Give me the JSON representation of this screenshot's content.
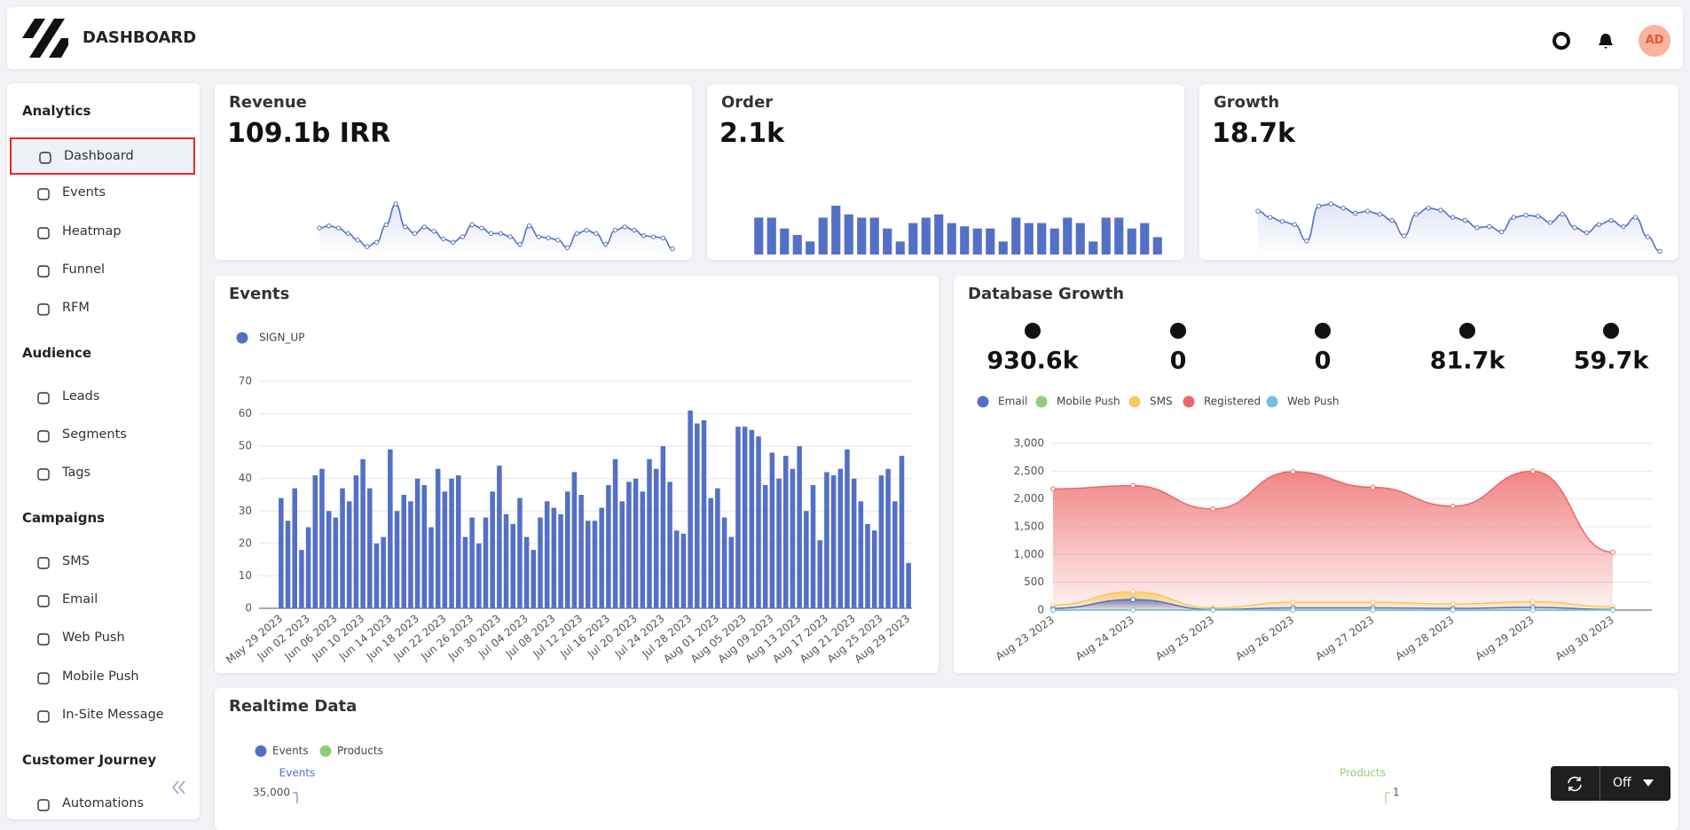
{
  "header": {
    "title": "DASHBOARD",
    "avatar": "AD"
  },
  "sidebar": {
    "sections": [
      {
        "title": "Analytics",
        "items": [
          "Dashboard",
          "Events",
          "Heatmap",
          "Funnel",
          "RFM"
        ]
      },
      {
        "title": "Audience",
        "items": [
          "Leads",
          "Segments",
          "Tags"
        ]
      },
      {
        "title": "Campaigns",
        "items": [
          "SMS",
          "Email",
          "Web Push",
          "Mobile Push",
          "In-Site Message"
        ]
      },
      {
        "title": "Customer Journey",
        "items": [
          "Automations"
        ]
      }
    ]
  },
  "cards": [
    {
      "title": "Revenue",
      "value": "109.1b IRR",
      "chart": {
        "type": "line",
        "color": "#5470c6",
        "values": [
          25,
          27,
          25,
          20,
          14,
          8,
          12,
          28,
          47,
          26,
          20,
          26,
          22,
          15,
          12,
          17,
          28,
          25,
          20,
          20,
          17,
          10,
          27,
          17,
          16,
          14,
          7,
          20,
          23,
          20,
          10,
          23,
          26,
          23,
          18,
          17,
          16,
          6
        ]
      }
    },
    {
      "title": "Order",
      "value": "2.1k",
      "chart": {
        "type": "bar",
        "color": "#5470c6",
        "values": [
          34,
          34,
          24,
          18,
          12,
          34,
          45,
          37,
          34,
          34,
          24,
          12,
          29,
          34,
          37,
          29,
          26,
          24,
          24,
          12,
          34,
          29,
          29,
          24,
          34,
          29,
          12,
          34,
          34,
          24,
          29,
          16
        ]
      }
    },
    {
      "title": "Growth",
      "value": "18.7k",
      "chart": {
        "type": "line",
        "color": "#5470c6",
        "values": [
          43,
          37,
          33,
          30,
          14,
          48,
          50,
          46,
          41,
          43,
          40,
          34,
          19,
          40,
          46,
          44,
          37,
          34,
          27,
          28,
          23,
          37,
          39,
          38,
          32,
          40,
          27,
          22,
          30,
          34,
          28,
          37,
          18,
          4
        ]
      }
    }
  ],
  "events_chart": {
    "title": "Events",
    "type": "bar",
    "categories": [
      "May 29 2023",
      null,
      null,
      null,
      "Jun 02 2023",
      null,
      null,
      null,
      "Jun 06 2023",
      null,
      null,
      null,
      "Jun 10 2023",
      null,
      null,
      null,
      "Jun 14 2023",
      null,
      null,
      null,
      "Jun 18 2023",
      null,
      null,
      null,
      "Jun 22 2023",
      null,
      null,
      null,
      "Jun 26 2023",
      null,
      null,
      null,
      "Jun 30 2023",
      null,
      null,
      null,
      "Jul 04 2023",
      null,
      null,
      null,
      "Jul 08 2023",
      null,
      null,
      null,
      "Jul 12 2023",
      null,
      null,
      null,
      "Jul 16 2023",
      null,
      null,
      null,
      "Jul 20 2023",
      null,
      null,
      null,
      "Jul 24 2023",
      null,
      null,
      null,
      "Jul 28 2023",
      null,
      null,
      null,
      "Aug 01 2023",
      null,
      null,
      null,
      "Aug 05 2023",
      null,
      null,
      null,
      "Aug 09 2023",
      null,
      null,
      null,
      "Aug 13 2023",
      null,
      null,
      null,
      "Aug 17 2023",
      null,
      null,
      null,
      "Aug 21 2023",
      null,
      null,
      null,
      "Aug 25 2023",
      null,
      null,
      null,
      "Aug 29 2023"
    ],
    "series": [
      {
        "name": "SIGN_UP",
        "color": "#5470c6",
        "values": [
          34,
          27,
          37,
          18,
          25,
          41,
          43,
          30,
          28,
          37,
          33,
          41,
          46,
          37,
          20,
          22,
          49,
          30,
          35,
          33,
          40,
          38,
          25,
          43,
          36,
          40,
          41,
          22,
          28,
          20,
          28,
          36,
          44,
          29,
          26,
          34,
          22,
          18,
          28,
          33,
          31,
          29,
          36,
          42,
          35,
          27,
          27,
          31,
          38,
          46,
          33,
          39,
          40,
          36,
          46,
          43,
          50,
          39,
          24,
          23,
          61,
          57,
          58,
          34,
          37,
          28,
          22,
          56,
          56,
          55,
          53,
          38,
          48,
          40,
          47,
          43,
          50,
          30,
          38,
          21,
          42,
          41,
          43,
          49,
          40,
          33,
          26,
          24,
          41,
          43,
          33,
          47,
          14
        ]
      }
    ],
    "ylim": [
      0,
      70
    ],
    "yticks": [
      0,
      10,
      20,
      30,
      40,
      50,
      60,
      70
    ],
    "grid": true
  },
  "database_growth": {
    "title": "Database Growth",
    "stats": [
      "930.6k",
      "0",
      "0",
      "81.7k",
      "59.7k"
    ],
    "chart": {
      "type": "area",
      "x": [
        "Aug 23 2023",
        "Aug 24 2023",
        "Aug 25 2023",
        "Aug 26 2023",
        "Aug 27 2023",
        "Aug 28 2023",
        "Aug 29 2023",
        "Aug 30 2023"
      ],
      "series": [
        {
          "name": "Email",
          "color": "#5470c6",
          "values": [
            30,
            190,
            10,
            40,
            40,
            30,
            50,
            10
          ]
        },
        {
          "name": "Mobile Push",
          "color": "#91cc75",
          "values": [
            0,
            0,
            0,
            0,
            0,
            0,
            0,
            0
          ]
        },
        {
          "name": "SMS",
          "color": "#fac858",
          "values": [
            90,
            330,
            40,
            140,
            140,
            110,
            150,
            60
          ]
        },
        {
          "name": "Registered",
          "color": "#ee6666",
          "values": [
            2180,
            2240,
            1820,
            2490,
            2210,
            1870,
            2500,
            1040
          ]
        },
        {
          "name": "Web Push",
          "color": "#73c0de",
          "values": [
            0,
            0,
            0,
            0,
            0,
            0,
            0,
            0
          ]
        }
      ],
      "ylim": [
        0,
        3000
      ],
      "yticks": [
        0,
        500,
        {
          "value": 1000,
          "label": "1,000"
        },
        {
          "value": 1500,
          "label": "1,500"
        },
        {
          "value": 2000,
          "label": "2,000"
        },
        {
          "value": 2500,
          "label": "2,500"
        },
        {
          "value": 3000,
          "label": "3,000"
        }
      ],
      "grid": true
    }
  },
  "realtime": {
    "title": "Realtime Data",
    "chart": {
      "type": "bar",
      "series": [
        {
          "name": "Events",
          "color": "#5470c6"
        },
        {
          "name": "Products",
          "color": "#91cc75",
          "axis": "y2"
        }
      ],
      "y_label": "Events",
      "y2_label": "Products",
      "ylim": [
        0,
        35000
      ],
      "yticks": [
        {
          "value": 35000,
          "label": "35,000"
        }
      ],
      "y2lim": [
        0,
        1
      ],
      "y2ticks": [
        1
      ]
    }
  },
  "controls": {
    "auto_refresh": "Off"
  }
}
